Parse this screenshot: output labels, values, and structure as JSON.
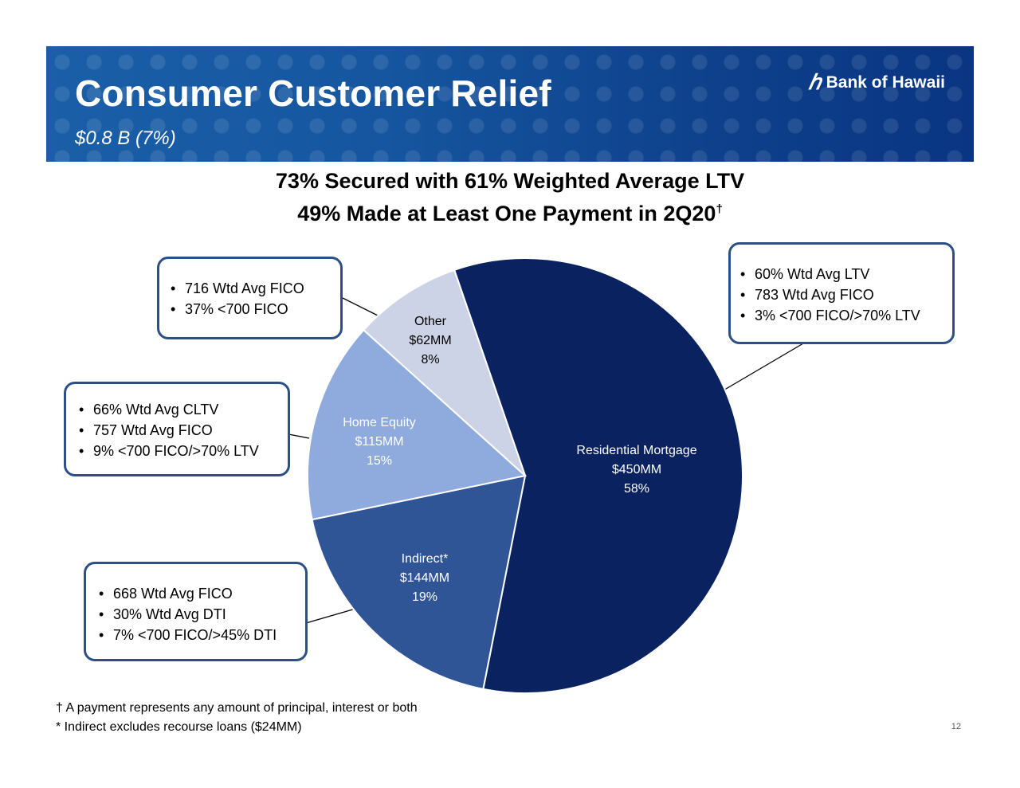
{
  "header": {
    "title": "Consumer Customer Relief",
    "subtitle": "$0.8 B (7%)",
    "logo_text": "Bank of Hawaii",
    "logo_mark": "ℎ"
  },
  "headline": {
    "line1": "73% Secured with 61% Weighted Average LTV",
    "line2": "49% Made at Least One Payment in 2Q20",
    "line2_sup": "†"
  },
  "callouts": {
    "other": [
      "716 Wtd Avg FICO",
      "37% <700 FICO"
    ],
    "home_equity": [
      "66% Wtd Avg CLTV",
      "757 Wtd Avg FICO",
      "9% <700 FICO/>70% LTV"
    ],
    "indirect": [
      "668 Wtd Avg FICO",
      "30% Wtd Avg DTI",
      "7% <700 FICO/>45% DTI"
    ],
    "residential": [
      "60% Wtd Avg LTV",
      "783 Wtd Avg FICO",
      "3% <700 FICO/>70% LTV"
    ]
  },
  "chart_data": {
    "type": "pie",
    "slices": [
      {
        "name": "Residential Mortgage",
        "amount": "$450MM",
        "value": 450,
        "percent": "58%",
        "color": "#0b2260",
        "label_color": "#ffffff"
      },
      {
        "name": "Indirect*",
        "amount": "$144MM",
        "value": 144,
        "percent": "19%",
        "color": "#2f5597",
        "label_color": "#ffffff"
      },
      {
        "name": "Home Equity",
        "amount": "$115MM",
        "value": 115,
        "percent": "15%",
        "color": "#8faadc",
        "label_color": "#ffffff"
      },
      {
        "name": "Other",
        "amount": "$62MM",
        "value": 62,
        "percent": "8%",
        "color": "#cdd3e6",
        "label_color": "#000000"
      }
    ]
  },
  "footnotes": {
    "dagger": "† A payment represents any amount of principal, interest or both",
    "indirect": "* Indirect excludes recourse loans ($24MM)"
  },
  "page_number": "12"
}
